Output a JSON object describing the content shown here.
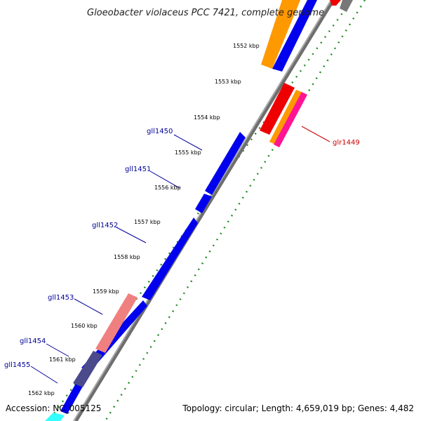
{
  "title": "Gloeobacter violaceus PCC 7421, complete genome",
  "footer": {
    "accession": "Accession: NC_005125",
    "topology": "Topology: circular; Length: 4,659,019 bp; Genes: 4,482"
  },
  "ticks": [
    "1552 kbp",
    "1553 kbp",
    "1554 kbp",
    "1555 kbp",
    "1556 kbp",
    "1557 kbp",
    "1558 kbp",
    "1559 kbp",
    "1560 kbp",
    "1561 kbp",
    "1562 kbp"
  ],
  "genes": [
    {
      "name": "glr1449",
      "color": "#cc0000"
    },
    {
      "name": "gll1450",
      "color": "#000099"
    },
    {
      "name": "gll1451",
      "color": "#000099"
    },
    {
      "name": "gll1452",
      "color": "#000099"
    },
    {
      "name": "gll1453",
      "color": "#000099"
    },
    {
      "name": "gll1454",
      "color": "#000099"
    },
    {
      "name": "gll1455",
      "color": "#000099"
    }
  ],
  "colors": {
    "backbone": "#8c8c8c",
    "cds_blue": "#0000ee",
    "orange": "#ff9900",
    "red": "#ee0000",
    "magenta": "#ff1493",
    "pink": "#f08080",
    "slate": "#4a4a8c",
    "cyan": "#33ffff",
    "dots": "#228b22"
  }
}
